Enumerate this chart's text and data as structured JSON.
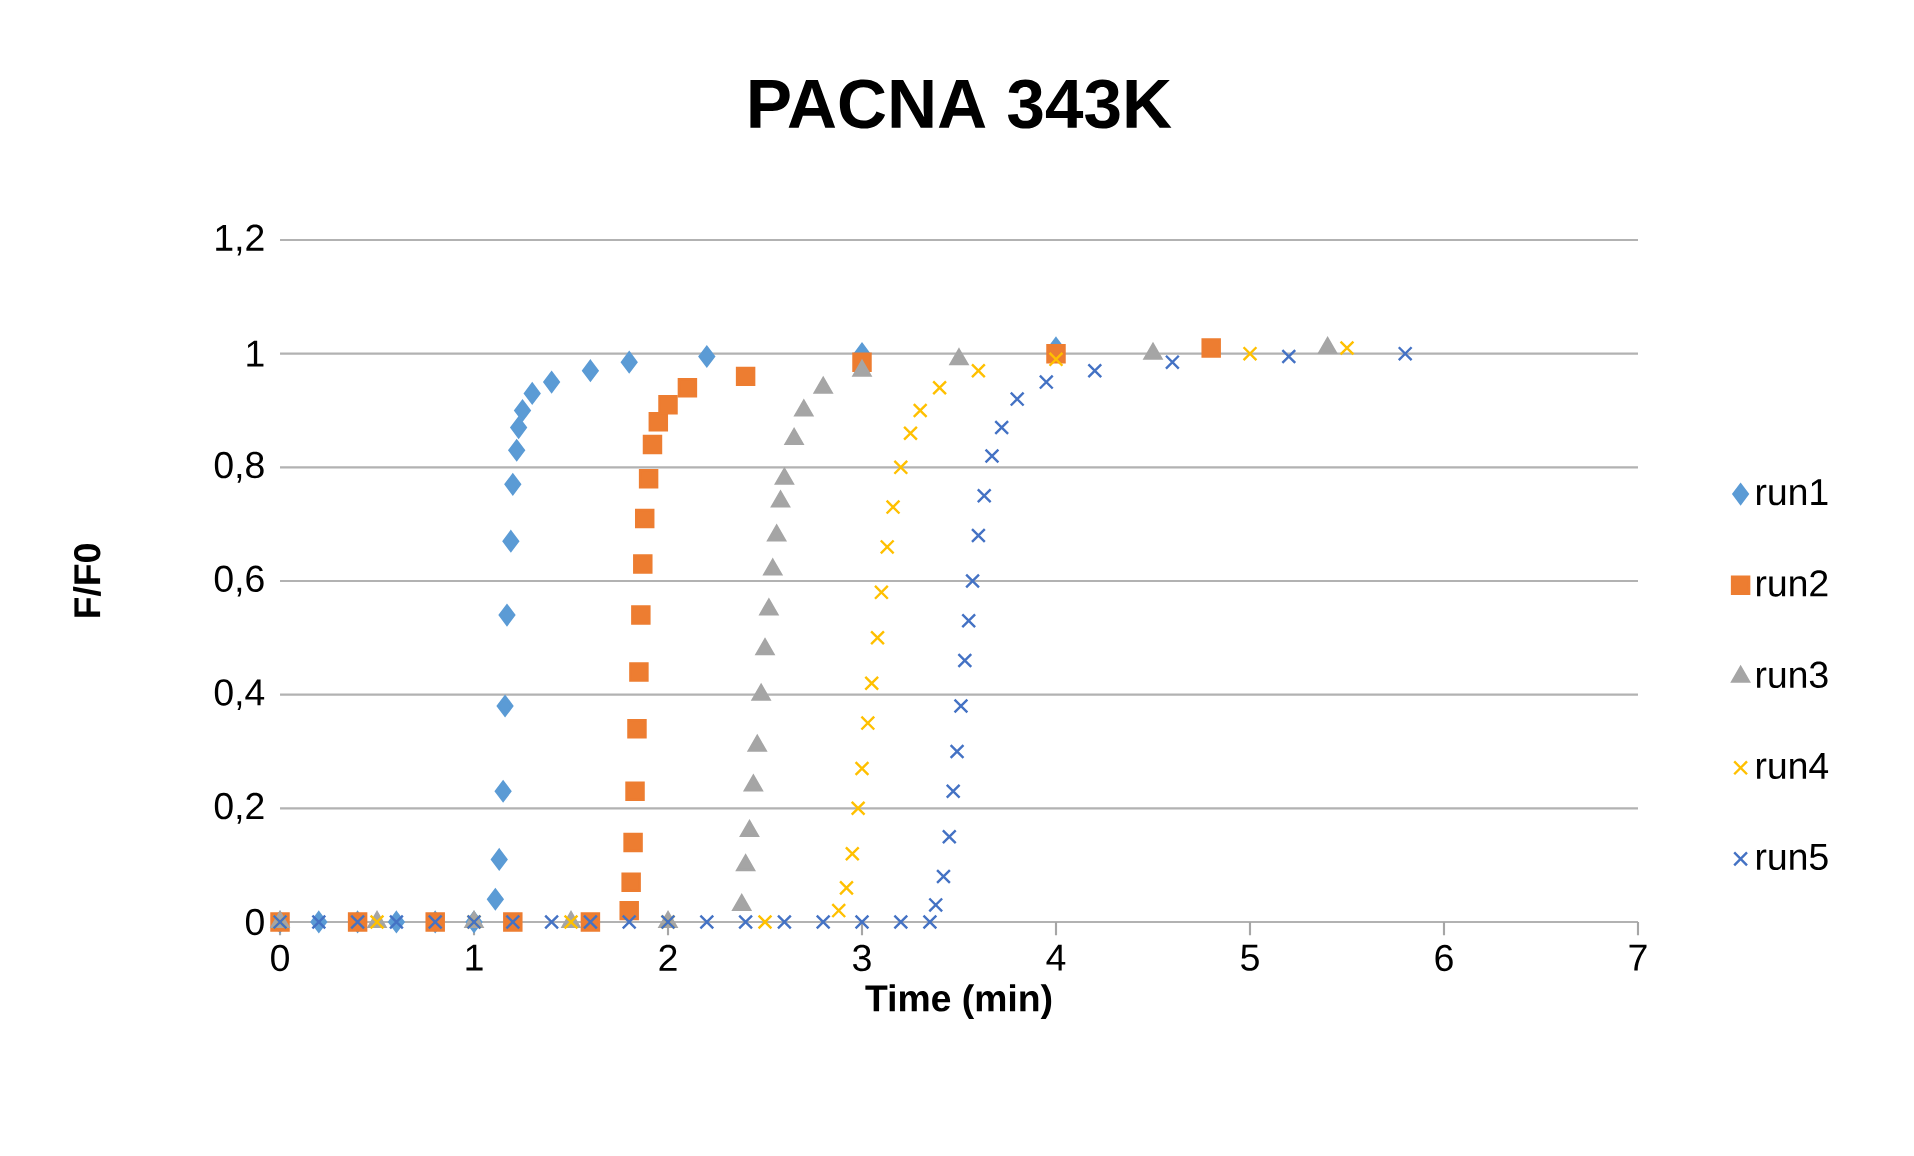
{
  "chart_data": {
    "type": "scatter",
    "title": "PACNA 343K",
    "xlabel": "Time (min)",
    "ylabel": "F/F0",
    "xlim": [
      0,
      7
    ],
    "xticks": [
      0,
      1,
      2,
      3,
      4,
      5,
      6,
      7
    ],
    "ylim": [
      0,
      1.2
    ],
    "yticks": [
      {
        "value": 0,
        "label": "0"
      },
      {
        "value": 0.2,
        "label": "0,2"
      },
      {
        "value": 0.4,
        "label": "0,4"
      },
      {
        "value": 0.6,
        "label": "0,6"
      },
      {
        "value": 0.8,
        "label": "0,8"
      },
      {
        "value": 1,
        "label": "1"
      },
      {
        "value": 1.2,
        "label": "1,2"
      }
    ],
    "grid": "y",
    "legend": "right",
    "series": [
      {
        "name": "run1",
        "color": "#5b9bd5",
        "marker": "diamond",
        "x": [
          0,
          0.2,
          0.4,
          0.6,
          0.8,
          1.0,
          1.11,
          1.13,
          1.15,
          1.16,
          1.17,
          1.19,
          1.2,
          1.22,
          1.23,
          1.25,
          1.3,
          1.4,
          1.6,
          1.8,
          2.2,
          3.0,
          4.0
        ],
        "values": [
          0,
          0,
          0,
          0,
          0,
          0,
          0.04,
          0.11,
          0.23,
          0.38,
          0.54,
          0.67,
          0.77,
          0.83,
          0.87,
          0.9,
          0.93,
          0.95,
          0.97,
          0.985,
          0.995,
          1.0,
          1.01
        ]
      },
      {
        "name": "run2",
        "color": "#ed7d31",
        "marker": "square",
        "x": [
          0,
          0.4,
          0.8,
          1.2,
          1.6,
          1.8,
          1.81,
          1.82,
          1.83,
          1.84,
          1.85,
          1.86,
          1.87,
          1.88,
          1.9,
          1.92,
          1.95,
          2.0,
          2.1,
          2.4,
          3.0,
          4.0,
          4.8
        ],
        "values": [
          0,
          0,
          0,
          0,
          0,
          0.02,
          0.07,
          0.14,
          0.23,
          0.34,
          0.44,
          0.54,
          0.63,
          0.71,
          0.78,
          0.84,
          0.88,
          0.91,
          0.94,
          0.96,
          0.985,
          1.0,
          1.01
        ]
      },
      {
        "name": "run3",
        "color": "#a5a5a5",
        "marker": "triangle",
        "x": [
          0,
          0.5,
          1.0,
          1.5,
          2.0,
          2.38,
          2.4,
          2.42,
          2.44,
          2.46,
          2.48,
          2.5,
          2.52,
          2.54,
          2.56,
          2.58,
          2.6,
          2.65,
          2.7,
          2.8,
          3.0,
          3.5,
          4.5,
          5.4
        ],
        "values": [
          0,
          0,
          0,
          0,
          0,
          0.03,
          0.1,
          0.16,
          0.24,
          0.31,
          0.4,
          0.48,
          0.55,
          0.62,
          0.68,
          0.74,
          0.78,
          0.85,
          0.9,
          0.94,
          0.97,
          0.99,
          1.0,
          1.01
        ]
      },
      {
        "name": "run4",
        "color": "#ffc000",
        "marker": "cross",
        "x": [
          0,
          0.5,
          1.0,
          1.5,
          2.0,
          2.5,
          2.88,
          2.92,
          2.95,
          2.98,
          3.0,
          3.03,
          3.05,
          3.08,
          3.1,
          3.13,
          3.16,
          3.2,
          3.25,
          3.3,
          3.4,
          3.6,
          4.0,
          5.0,
          5.5
        ],
        "values": [
          0,
          0,
          0,
          0,
          0,
          0,
          0.02,
          0.06,
          0.12,
          0.2,
          0.27,
          0.35,
          0.42,
          0.5,
          0.58,
          0.66,
          0.73,
          0.8,
          0.86,
          0.9,
          0.94,
          0.97,
          0.99,
          1.0,
          1.01
        ]
      },
      {
        "name": "run5",
        "color": "#4472c4",
        "marker": "cross",
        "x": [
          0,
          0.2,
          0.4,
          0.6,
          0.8,
          1.0,
          1.2,
          1.4,
          1.6,
          1.8,
          2.0,
          2.2,
          2.4,
          2.6,
          2.8,
          3.0,
          3.2,
          3.35,
          3.38,
          3.42,
          3.45,
          3.47,
          3.49,
          3.51,
          3.53,
          3.55,
          3.57,
          3.6,
          3.63,
          3.67,
          3.72,
          3.8,
          3.95,
          4.2,
          4.6,
          5.2,
          5.8
        ],
        "values": [
          0,
          0,
          0,
          0,
          0,
          0,
          0,
          0,
          0,
          0,
          0,
          0,
          0,
          0,
          0,
          0,
          0,
          0,
          0.03,
          0.08,
          0.15,
          0.23,
          0.3,
          0.38,
          0.46,
          0.53,
          0.6,
          0.68,
          0.75,
          0.82,
          0.87,
          0.92,
          0.95,
          0.97,
          0.985,
          0.995,
          1.0
        ]
      }
    ]
  }
}
